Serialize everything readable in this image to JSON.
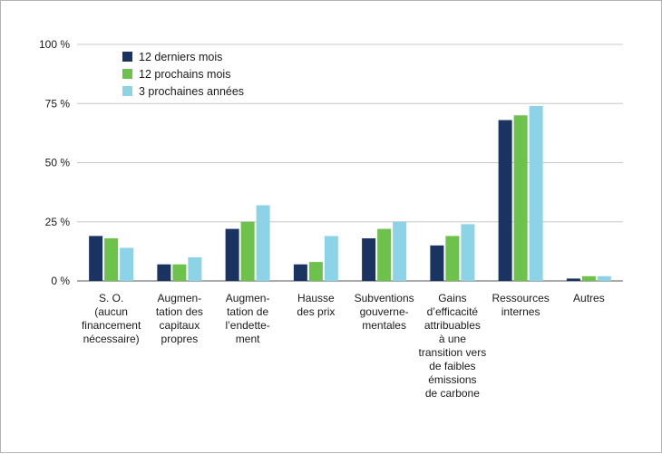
{
  "chart_data": {
    "type": "bar",
    "title": "",
    "xlabel": "",
    "ylabel": "",
    "ylim": [
      0,
      100
    ],
    "yticks": [
      "0 %",
      "25 %",
      "50 %",
      "75 %",
      "100 %"
    ],
    "ytick_values": [
      0,
      25,
      50,
      75,
      100
    ],
    "grid": true,
    "legend_position": "top-left",
    "categories": [
      [
        "S. O.",
        "(aucun",
        "financement",
        "nécessaire)"
      ],
      [
        "Augmen-",
        "tation des",
        "capitaux",
        "propres"
      ],
      [
        "Augmen-",
        "tation de",
        "l’endette-",
        "ment"
      ],
      [
        "Hausse",
        "des prix"
      ],
      [
        "Subventions",
        "gouverne-",
        "mentales"
      ],
      [
        "Gains",
        "d’efficacité",
        "attribuables",
        "à une",
        "transition vers",
        "de faibles",
        "émissions",
        "de carbone"
      ],
      [
        "Ressources",
        "internes"
      ],
      [
        "Autres"
      ]
    ],
    "series": [
      {
        "name": "12 derniers mois",
        "color": "#1b3360",
        "values": [
          19,
          7,
          22,
          7,
          18,
          15,
          68,
          1
        ]
      },
      {
        "name": "12 prochains mois",
        "color": "#6cc24a",
        "values": [
          18,
          7,
          25,
          8,
          22,
          19,
          70,
          2
        ]
      },
      {
        "name": "3 prochaines années",
        "color": "#8dd3e8",
        "values": [
          14,
          10,
          32,
          19,
          25,
          24,
          74,
          2
        ]
      }
    ]
  }
}
